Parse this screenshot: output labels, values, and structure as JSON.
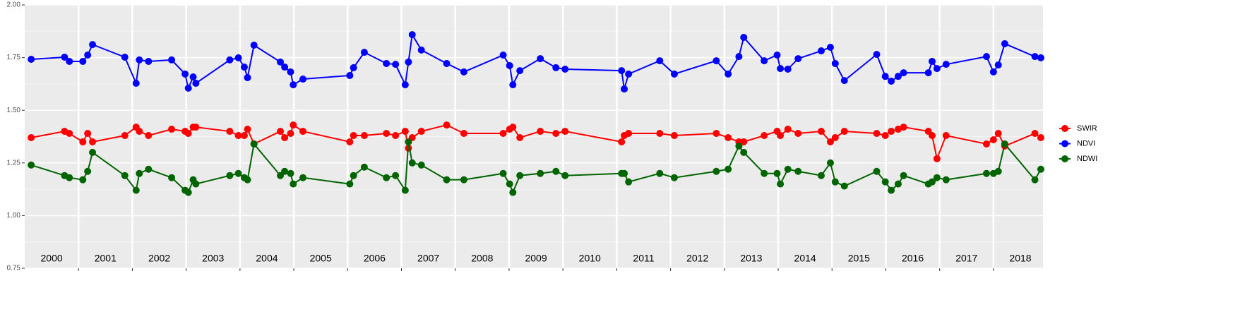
{
  "chart_data": {
    "type": "line",
    "x": [
      2000.12,
      2000.74,
      2000.83,
      2001.08,
      2001.17,
      2001.26,
      2001.86,
      2002.07,
      2002.13,
      2002.3,
      2002.73,
      2002.98,
      2003.04,
      2003.13,
      2003.18,
      2003.81,
      2003.97,
      2004.08,
      2004.14,
      2004.26,
      2004.75,
      2004.83,
      2004.94,
      2004.99,
      2005.17,
      2006.04,
      2006.11,
      2006.31,
      2006.72,
      2006.89,
      2007.07,
      2007.13,
      2007.2,
      2007.37,
      2007.84,
      2008.16,
      2008.89,
      2009.01,
      2009.07,
      2009.2,
      2009.58,
      2009.87,
      2010.04,
      2011.09,
      2011.14,
      2011.22,
      2011.8,
      2012.07,
      2012.85,
      2013.07,
      2013.27,
      2013.36,
      2013.74,
      2013.98,
      2014.04,
      2014.18,
      2014.37,
      2014.8,
      2014.97,
      2015.06,
      2015.23,
      2015.83,
      2015.99,
      2016.1,
      2016.23,
      2016.33,
      2016.79,
      2016.86,
      2016.95,
      2017.12,
      2017.87,
      2018.0,
      2018.09,
      2018.21,
      2018.77,
      2018.88
    ],
    "series": [
      {
        "name": "SWIR",
        "color": "#ff0000",
        "values": [
          1.37,
          1.4,
          1.39,
          1.35,
          1.39,
          1.35,
          1.38,
          1.42,
          1.4,
          1.38,
          1.41,
          1.4,
          1.39,
          1.42,
          1.42,
          1.4,
          1.38,
          1.38,
          1.41,
          1.34,
          1.4,
          1.37,
          1.39,
          1.43,
          1.4,
          1.35,
          1.38,
          1.38,
          1.39,
          1.38,
          1.4,
          1.32,
          1.37,
          1.4,
          1.43,
          1.39,
          1.39,
          1.41,
          1.42,
          1.37,
          1.4,
          1.39,
          1.4,
          1.35,
          1.38,
          1.39,
          1.39,
          1.38,
          1.39,
          1.37,
          1.35,
          1.35,
          1.38,
          1.4,
          1.38,
          1.41,
          1.39,
          1.4,
          1.35,
          1.37,
          1.4,
          1.39,
          1.38,
          1.4,
          1.41,
          1.42,
          1.4,
          1.38,
          1.27,
          1.38,
          1.34,
          1.36,
          1.39,
          1.33,
          1.39,
          1.37
        ]
      },
      {
        "name": "NDVI",
        "color": "#0000ff",
        "values": [
          1.742,
          1.752,
          1.732,
          1.732,
          1.762,
          1.812,
          1.752,
          1.628,
          1.739,
          1.732,
          1.739,
          1.672,
          1.605,
          1.658,
          1.628,
          1.739,
          1.749,
          1.705,
          1.655,
          1.809,
          1.729,
          1.705,
          1.682,
          1.621,
          1.648,
          1.665,
          1.702,
          1.775,
          1.722,
          1.718,
          1.621,
          1.729,
          1.859,
          1.786,
          1.722,
          1.682,
          1.762,
          1.712,
          1.621,
          1.688,
          1.745,
          1.702,
          1.695,
          1.688,
          1.601,
          1.672,
          1.735,
          1.672,
          1.735,
          1.672,
          1.755,
          1.846,
          1.735,
          1.762,
          1.698,
          1.695,
          1.745,
          1.782,
          1.799,
          1.722,
          1.641,
          1.765,
          1.661,
          1.638,
          1.661,
          1.678,
          1.678,
          1.732,
          1.698,
          1.718,
          1.755,
          1.682,
          1.715,
          1.816,
          1.755,
          1.749
        ]
      },
      {
        "name": "NDWI",
        "color": "#006400",
        "values": [
          1.24,
          1.19,
          1.18,
          1.17,
          1.21,
          1.3,
          1.19,
          1.12,
          1.2,
          1.22,
          1.18,
          1.12,
          1.11,
          1.17,
          1.15,
          1.19,
          1.2,
          1.18,
          1.17,
          1.34,
          1.19,
          1.21,
          1.2,
          1.15,
          1.18,
          1.15,
          1.19,
          1.23,
          1.18,
          1.19,
          1.12,
          1.35,
          1.25,
          1.24,
          1.17,
          1.17,
          1.2,
          1.15,
          1.11,
          1.19,
          1.2,
          1.21,
          1.19,
          1.2,
          1.2,
          1.16,
          1.2,
          1.18,
          1.21,
          1.22,
          1.33,
          1.3,
          1.2,
          1.2,
          1.15,
          1.22,
          1.21,
          1.19,
          1.25,
          1.16,
          1.14,
          1.21,
          1.16,
          1.12,
          1.15,
          1.19,
          1.15,
          1.16,
          1.18,
          1.17,
          1.2,
          1.2,
          1.21,
          1.34,
          1.17,
          1.22
        ]
      }
    ],
    "xlim": [
      2000,
      2018.92
    ],
    "xticks": [
      2001,
      2002,
      2003,
      2004,
      2005,
      2006,
      2007,
      2008,
      2009,
      2010,
      2011,
      2012,
      2013,
      2014,
      2015,
      2016,
      2017,
      2018
    ],
    "year_labels": [
      "2000",
      "2001",
      "2002",
      "2003",
      "2004",
      "2005",
      "2006",
      "2007",
      "2008",
      "2009",
      "2010",
      "2011",
      "2012",
      "2013",
      "2014",
      "2015",
      "2016",
      "2017",
      "2018"
    ],
    "ylim": [
      0.75,
      2.0
    ],
    "yticks": [
      0.75,
      {
        "value": 1,
        "label": "1.00"
      },
      1.25,
      {
        "value": 1.5,
        "label": "1.50"
      },
      1.75,
      {
        "value": 2,
        "label": "2.00"
      }
    ],
    "grid": true,
    "legend": "right"
  }
}
